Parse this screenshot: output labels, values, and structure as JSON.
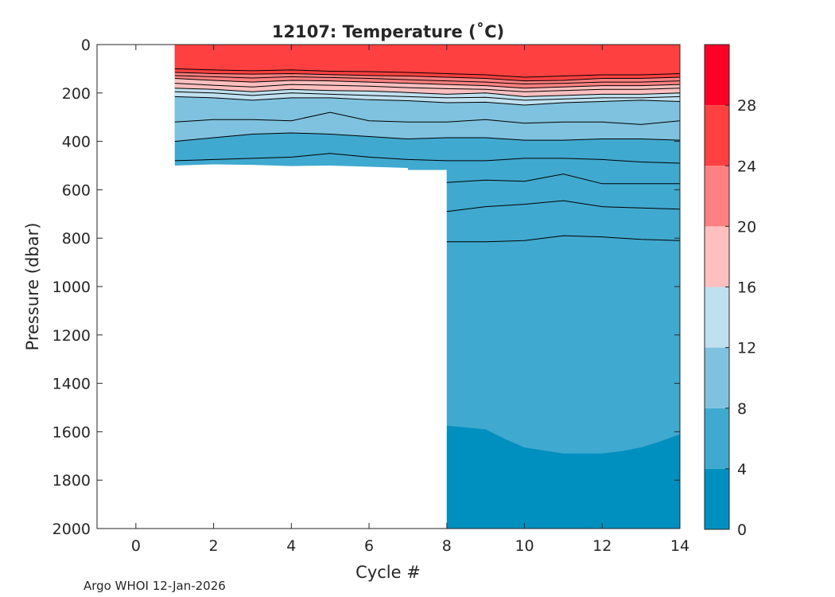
{
  "chart_data": {
    "type": "heatmap",
    "title": "12107:  Temperature (˚C)",
    "xlabel": "Cycle #",
    "ylabel": "Pressure (dbar)",
    "xlim": [
      -1,
      14
    ],
    "ylim": [
      0,
      2000
    ],
    "y_reversed": true,
    "x_ticks": [
      0,
      2,
      4,
      6,
      8,
      10,
      12,
      14
    ],
    "y_ticks": [
      0,
      200,
      400,
      600,
      800,
      1000,
      1200,
      1400,
      1600,
      1800,
      2000
    ],
    "data_extent": {
      "x_start": 1,
      "x_end": 14,
      "x_deep_start": 8,
      "shallow_bottom": [
        [
          1,
          500
        ],
        [
          2,
          495
        ],
        [
          3,
          497
        ],
        [
          4,
          502
        ],
        [
          5,
          500
        ],
        [
          6,
          505
        ],
        [
          7,
          510
        ],
        [
          7,
          518
        ],
        [
          8,
          518
        ]
      ],
      "deep_bottom": 2000
    },
    "colorbar": {
      "levels": [
        0,
        4,
        8,
        12,
        16,
        20,
        24,
        28,
        32
      ],
      "ticks": [
        0,
        4,
        8,
        12,
        16,
        20,
        24,
        28
      ],
      "colors": [
        "#0090bf",
        "#40a9cf",
        "#7fc2df",
        "#bfe0ef",
        "#ffbfbf",
        "#ff8080",
        "#ff4040",
        "#ff0027"
      ]
    },
    "isotherm_x": [
      1,
      2,
      3,
      4,
      5,
      6,
      7,
      8,
      9,
      10,
      11,
      12,
      13,
      14
    ],
    "isotherms": [
      {
        "temp": 26,
        "depth": [
          100,
          105,
          108,
          105,
          110,
          112,
          115,
          120,
          125,
          135,
          130,
          125,
          125,
          120
        ]
      },
      {
        "temp": 24,
        "depth": [
          115,
          120,
          122,
          120,
          124,
          128,
          130,
          135,
          140,
          150,
          148,
          140,
          140,
          135
        ]
      },
      {
        "temp": 22,
        "depth": [
          128,
          133,
          138,
          133,
          136,
          140,
          145,
          150,
          155,
          163,
          160,
          155,
          155,
          150
        ]
      },
      {
        "temp": 20,
        "depth": [
          140,
          148,
          155,
          148,
          150,
          155,
          160,
          165,
          170,
          180,
          175,
          170,
          170,
          165
        ]
      },
      {
        "temp": 18,
        "depth": [
          160,
          168,
          175,
          165,
          168,
          172,
          178,
          182,
          185,
          195,
          190,
          185,
          185,
          180
        ]
      },
      {
        "temp": 16,
        "depth": [
          180,
          185,
          195,
          185,
          190,
          192,
          198,
          205,
          200,
          215,
          210,
          205,
          205,
          200
        ]
      },
      {
        "temp": 14,
        "depth": [
          195,
          200,
          210,
          200,
          205,
          210,
          215,
          220,
          218,
          230,
          225,
          220,
          220,
          215
        ]
      },
      {
        "temp": 12,
        "depth": [
          215,
          220,
          230,
          220,
          220,
          228,
          232,
          240,
          238,
          250,
          240,
          235,
          230,
          235
        ]
      },
      {
        "temp": 10,
        "depth": [
          320,
          310,
          310,
          315,
          280,
          315,
          320,
          320,
          310,
          325,
          320,
          320,
          330,
          315
        ]
      },
      {
        "temp": 8,
        "depth": [
          400,
          385,
          370,
          365,
          370,
          380,
          390,
          385,
          385,
          395,
          395,
          390,
          390,
          395
        ]
      },
      {
        "temp": 7,
        "depth": [
          480,
          475,
          470,
          465,
          450,
          465,
          475,
          480,
          480,
          470,
          470,
          475,
          485,
          490
        ]
      },
      {
        "temp": 6,
        "depth": [
          null,
          null,
          null,
          null,
          null,
          null,
          null,
          570,
          560,
          565,
          535,
          575,
          575,
          575
        ]
      },
      {
        "temp": 5,
        "depth": [
          null,
          null,
          null,
          null,
          null,
          null,
          null,
          690,
          670,
          660,
          645,
          670,
          675,
          680
        ]
      },
      {
        "temp": 4,
        "depth": [
          null,
          null,
          null,
          null,
          null,
          null,
          null,
          815,
          815,
          810,
          790,
          795,
          805,
          810
        ]
      }
    ],
    "cold_boundary": {
      "temp": 4,
      "x": [
        8,
        9,
        9.5,
        10,
        11,
        12,
        12.5,
        13,
        13.5,
        14
      ],
      "depth": [
        1575,
        1590,
        1630,
        1665,
        1690,
        1690,
        1680,
        1665,
        1640,
        1610
      ]
    }
  },
  "credit": "Argo WHOI 12-Jan-2026"
}
